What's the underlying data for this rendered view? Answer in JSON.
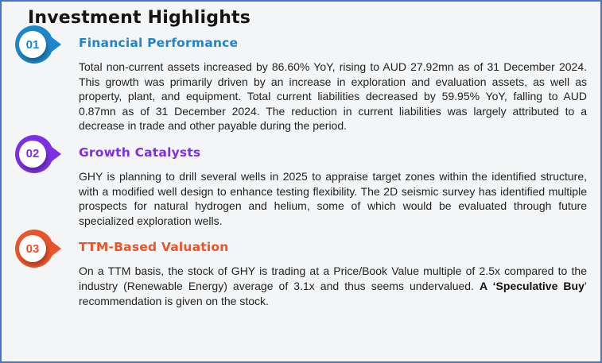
{
  "page": {
    "title": "Investment Highlights",
    "background": "#f4f5f6",
    "border_color": "#4676c8"
  },
  "sections": [
    {
      "number": "01",
      "title": "Financial Performance",
      "color": "#1e87c9",
      "body": "Total non-current assets increased by 86.60% YoY, rising to AUD 27.92mn as of 31 December 2024. This growth was primarily driven by an increase in exploration and evaluation assets, as well as property, plant, and equipment. Total current liabilities decreased by 59.95% YoY, falling to AUD 0.87mn as of 31 December 2024. The reduction in current liabilities was largely attributed to a decrease in trade and other payable during the period."
    },
    {
      "number": "02",
      "title": "Growth Catalysts",
      "color": "#7d30e3",
      "body": "GHY is planning to drill several wells in 2025 to appraise target zones within the identified structure, with a modified well design to enhance testing flexibility. The 2D seismic survey has identified multiple prospects for natural hydrogen and helium, some of which would be evaluated through future specialized exploration wells."
    },
    {
      "number": "03",
      "title": "TTM-Based Valuation",
      "color": "#e9542a",
      "body_before": "On a TTM basis, the stock of GHY is trading at a Price/Book Value multiple of 2.5x compared to the industry (Renewable Energy) average of 3.1x and thus seems undervalued. ",
      "body_bold": "A ‘Speculative Buy",
      "body_after": "’ recommendation is given on the stock."
    }
  ]
}
